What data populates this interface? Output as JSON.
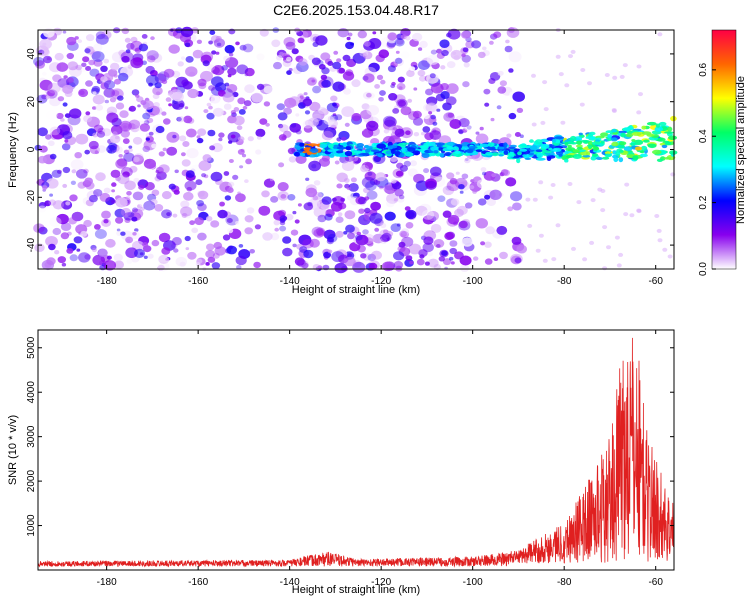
{
  "figure_title": "C2E6.2025.153.04.48.R17",
  "chart_data": [
    {
      "type": "heatmap",
      "name": "spectrogram",
      "xlabel": "Height of straight line (km)",
      "ylabel": "Frequency (Hz)",
      "xlim": [
        -195,
        -56
      ],
      "ylim": [
        -50,
        50
      ],
      "xticks": [
        -180,
        -160,
        -140,
        -120,
        -100,
        -80,
        -60
      ],
      "yticks": [
        -40,
        -20,
        0,
        20,
        40
      ],
      "noise_extent_x": [
        -195,
        -89
      ],
      "noise_gap_x": [
        -150,
        -142
      ],
      "signal_extent_x": [
        -139,
        -56
      ],
      "signal_freq_center": [
        [
          -139,
          0
        ],
        [
          -90,
          0
        ],
        [
          -56,
          5
        ]
      ],
      "colorbar": {
        "label": "Normalized spectral amplitude",
        "range": [
          0,
          0.72
        ],
        "ticks": [
          0.0,
          0.2,
          0.4,
          0.6
        ],
        "tick_labels": [
          "0.0",
          "0.2",
          "0.4",
          "0.6"
        ],
        "colormap": [
          "#ffffff",
          "#8800ee",
          "#0000ff",
          "#00ffff",
          "#00ff66",
          "#ffff00",
          "#ff6600",
          "#ff0044"
        ]
      }
    },
    {
      "type": "line",
      "name": "snr",
      "xlabel": "Height of straight line (km)",
      "ylabel": "SNR (10 * v/v)",
      "xlim": [
        -195,
        -56
      ],
      "ylim": [
        0,
        5400
      ],
      "xticks": [
        -180,
        -160,
        -140,
        -120,
        -100,
        -80,
        -60
      ],
      "yticks": [
        1000,
        2000,
        3000,
        4000,
        5000
      ],
      "color": "#e02020",
      "envelope": [
        {
          "x": -195,
          "y": 200
        },
        {
          "x": -140,
          "y": 230
        },
        {
          "x": -132,
          "y": 420
        },
        {
          "x": -125,
          "y": 250
        },
        {
          "x": -100,
          "y": 300
        },
        {
          "x": -90,
          "y": 450
        },
        {
          "x": -80,
          "y": 1100
        },
        {
          "x": -75,
          "y": 2000
        },
        {
          "x": -70,
          "y": 3000
        },
        {
          "x": -67,
          "y": 5200
        },
        {
          "x": -64,
          "y": 5300
        },
        {
          "x": -62,
          "y": 3200
        },
        {
          "x": -58,
          "y": 2000
        },
        {
          "x": -56,
          "y": 1500
        }
      ]
    }
  ]
}
